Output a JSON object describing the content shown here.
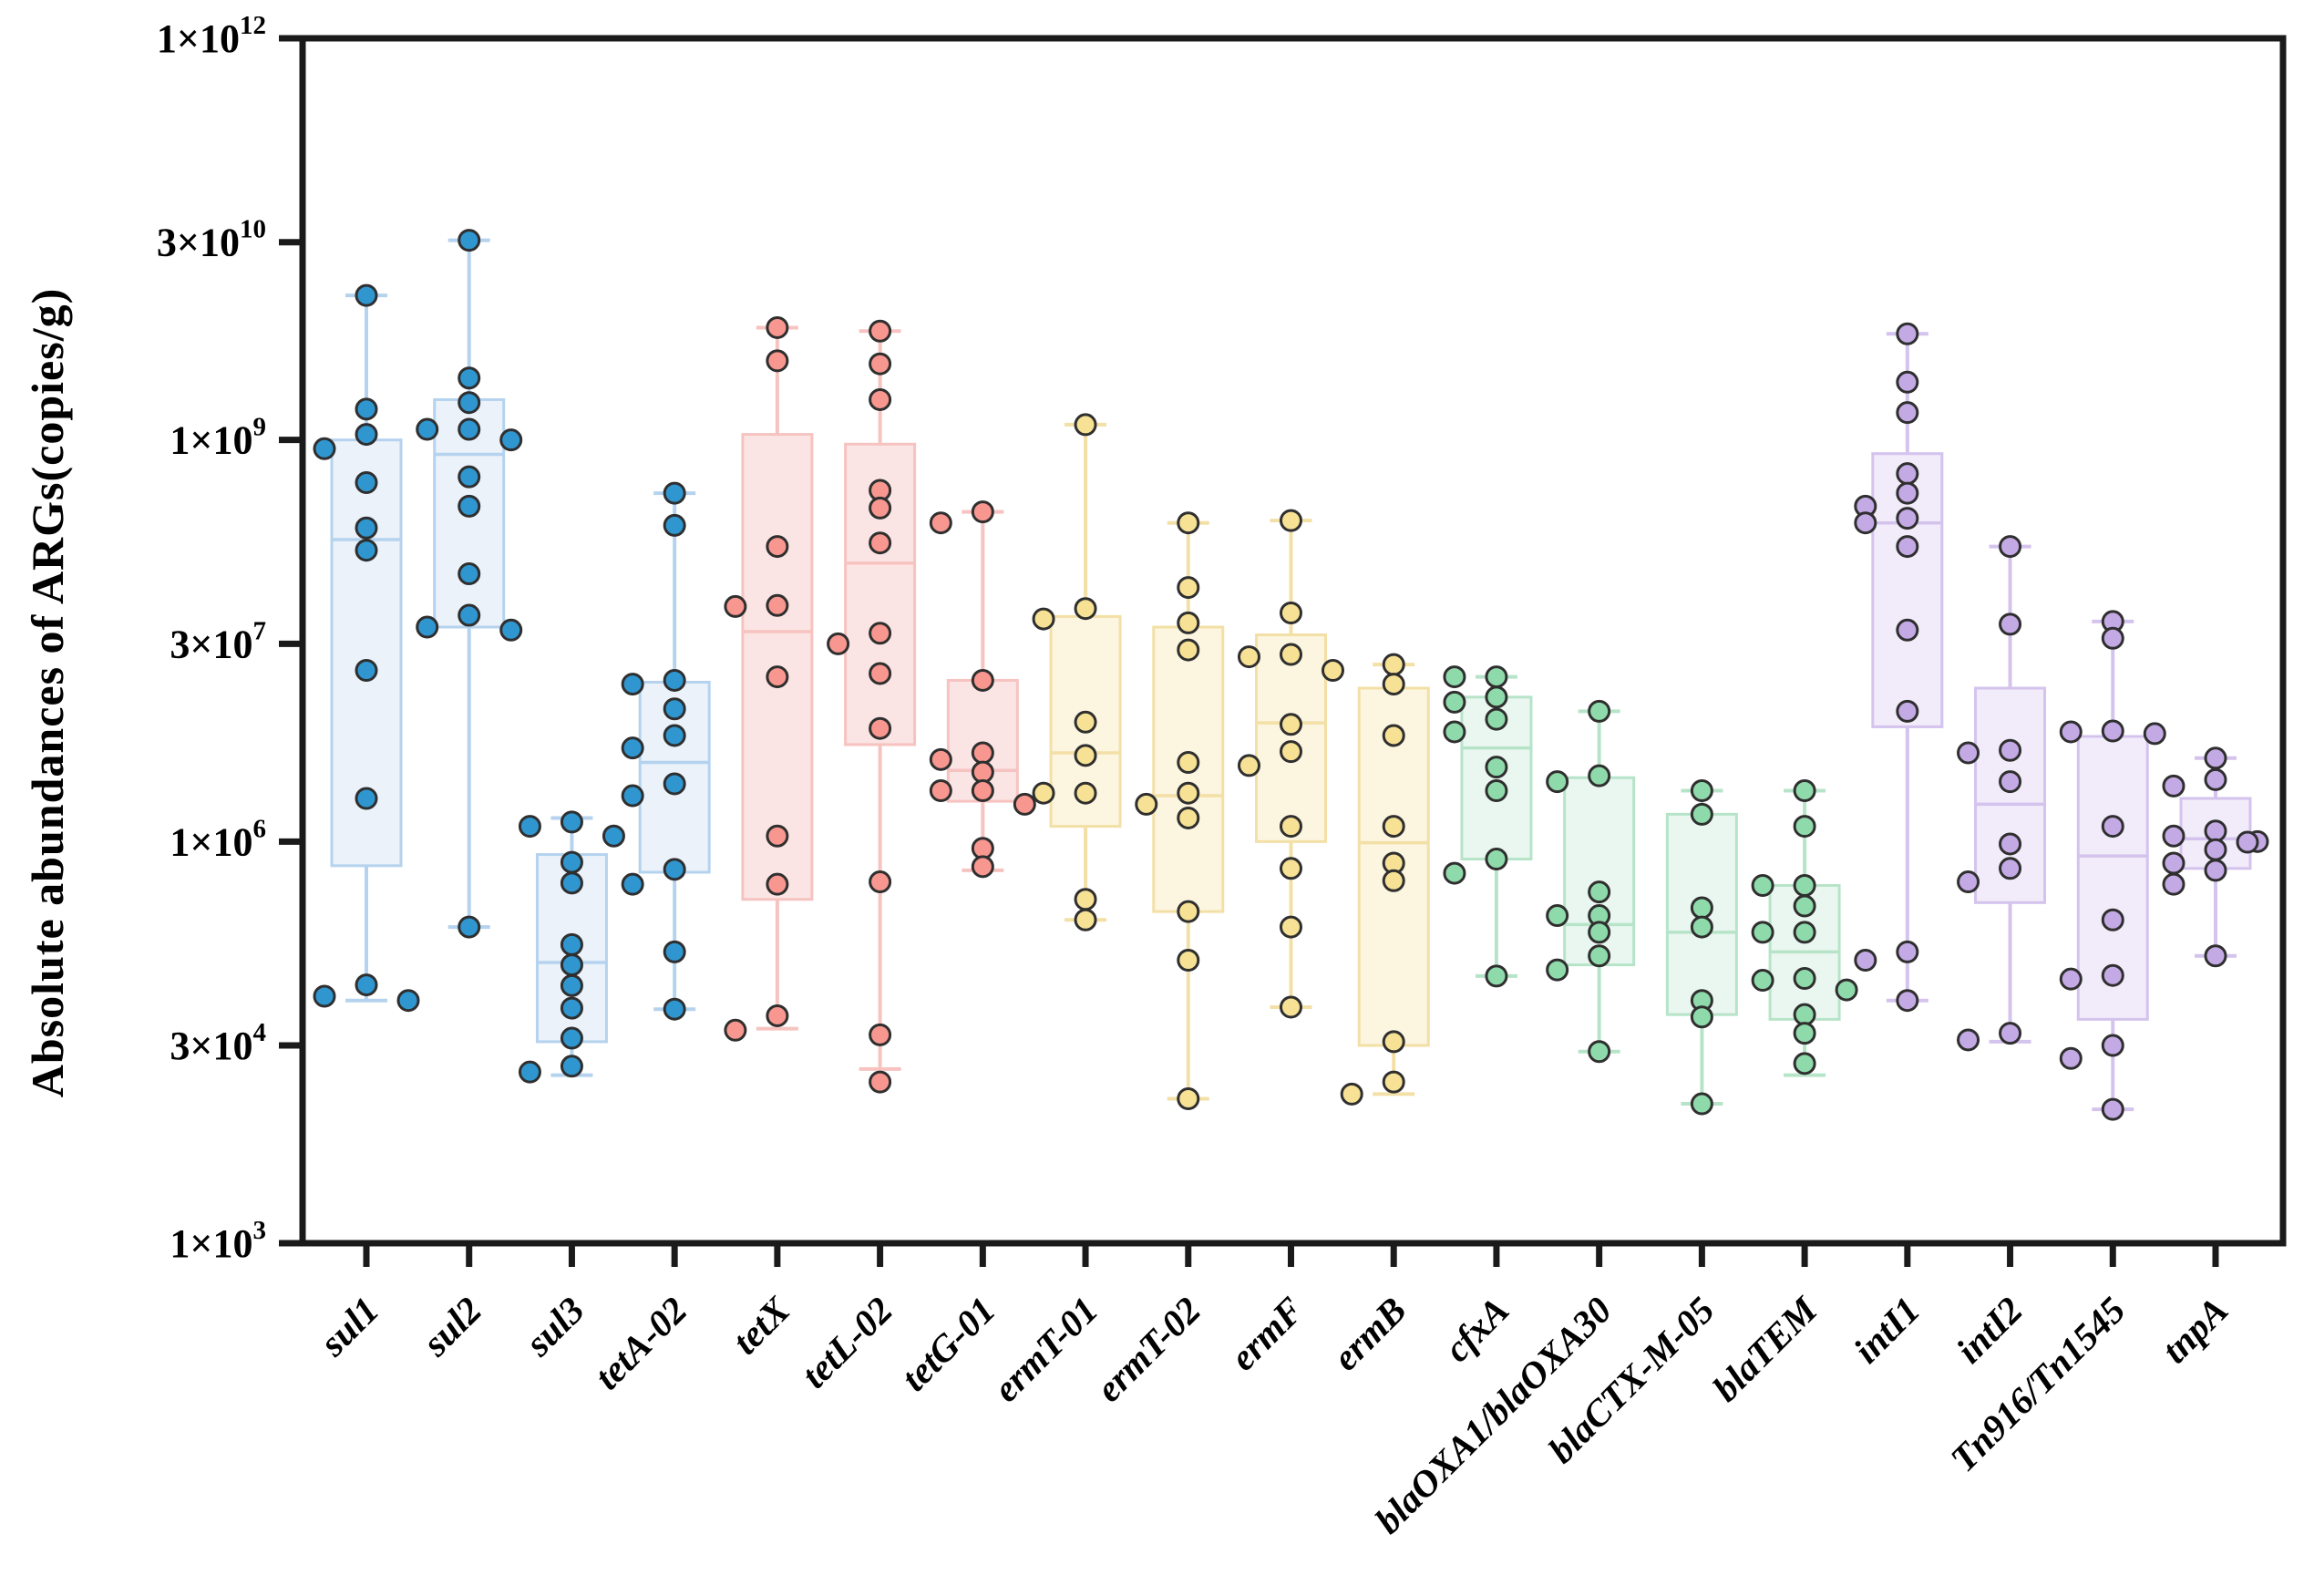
{
  "figure": {
    "background": "#ffffff",
    "frame_color": "#1a1a1a",
    "point_stroke_color": "#2f2f2f"
  },
  "chart_data": {
    "type": "box",
    "title": "",
    "xlabel": "",
    "ylabel": "Absolute abundances of ARGs(copies/g)",
    "y_scale": "log10",
    "ylim_log": [
      3,
      12
    ],
    "grid": false,
    "legend": false,
    "y_ticks": [
      {
        "coef": "1",
        "exp": "12",
        "value": 1000000000000.0
      },
      {
        "coef": "3",
        "exp": "10",
        "value": 30000000000.0
      },
      {
        "coef": "1",
        "exp": "9",
        "value": 1000000000.0
      },
      {
        "coef": "3",
        "exp": "7",
        "value": 30000000.0
      },
      {
        "coef": "1",
        "exp": "6",
        "value": 1000000.0
      },
      {
        "coef": "3",
        "exp": "4",
        "value": 30000.0
      },
      {
        "coef": "1",
        "exp": "3",
        "value": 1000.0
      }
    ],
    "palette": {
      "blue": {
        "point": "#2F96D0",
        "box_fill": "#E9F1FA",
        "box_line": "#B5D3EE"
      },
      "red": {
        "point": "#F7978F",
        "box_fill": "#FBE2E1",
        "box_line": "#F6C3C0"
      },
      "yellow": {
        "point": "#F6E195",
        "box_fill": "#FCF4DD",
        "box_line": "#F3E0A6"
      },
      "green": {
        "point": "#8FDAAB",
        "box_fill": "#E8F6EE",
        "box_line": "#B7E4C9"
      },
      "purple": {
        "point": "#C4AAE5",
        "box_fill": "#EFE9F9",
        "box_line": "#D4C3ED"
      }
    },
    "categories": [
      {
        "label": "sul1",
        "group": "blue",
        "box": {
          "q1": 660000.0,
          "median": 180000000.0,
          "q3": 1000000000.0,
          "whisker_low": 65000.0,
          "whisker_high": 12000000000.0
        },
        "points": [
          12000000000.0,
          1700000000.0,
          1100000000.0,
          860000000.0,
          480000000.0,
          220000000.0,
          150000000.0,
          19000000.0,
          2100000.0,
          85000.0,
          70000.0,
          65000.0
        ]
      },
      {
        "label": "sul2",
        "group": "blue",
        "box": {
          "q1": 40000000.0,
          "median": 780000000.0,
          "q3": 2000000000.0,
          "whisker_low": 230000.0,
          "whisker_high": 31000000000.0
        },
        "points": [
          31000000000.0,
          2900000000.0,
          1900000000.0,
          1200000000.0,
          1200000000.0,
          1000000000.0,
          530000000.0,
          320000000.0,
          100000000.0,
          49000000.0,
          40000000.0,
          38000000.0,
          230000.0
        ]
      },
      {
        "label": "sul3",
        "group": "blue",
        "box": {
          "q1": 32000.0,
          "median": 125000.0,
          "q3": 800000.0,
          "whisker_low": 18000.0,
          "whisker_high": 1500000.0
        },
        "points": [
          1400000.0,
          1300000.0,
          1100000.0,
          700000.0,
          490000.0,
          170000.0,
          120000.0,
          84000.0,
          57000.0,
          34000.0,
          21000.0,
          19000.0
        ]
      },
      {
        "label": "tetA-02",
        "group": "blue",
        "box": {
          "q1": 590000.0,
          "median": 3900000.0,
          "q3": 15500000.0,
          "whisker_low": 56000.0,
          "whisker_high": 400000000.0
        },
        "points": [
          400000000.0,
          230000000.0,
          16000000.0,
          15000000.0,
          9800000.0,
          6200000.0,
          5000000.0,
          2700000.0,
          2200000.0,
          620000.0,
          480000.0,
          150000.0,
          56000.0
        ]
      },
      {
        "label": "tetX",
        "group": "red",
        "box": {
          "q1": 370000.0,
          "median": 37000000.0,
          "q3": 1100000000.0,
          "whisker_low": 40000.0,
          "whisker_high": 6900000000.0
        },
        "points": [
          6900000000.0,
          3900000000.0,
          160000000.0,
          58000000.0,
          57000000.0,
          17000000.0,
          1100000.0,
          480000.0,
          50000.0,
          39000.0
        ]
      },
      {
        "label": "tetL-02",
        "group": "red",
        "box": {
          "q1": 5300000.0,
          "median": 120000000.0,
          "q3": 930000000.0,
          "whisker_low": 20000.0,
          "whisker_high": 6500000000.0
        },
        "points": [
          6500000000.0,
          3700000000.0,
          2000000000.0,
          420000000.0,
          310000000.0,
          170000000.0,
          36000000.0,
          30000000.0,
          18000000.0,
          7000000.0,
          500000.0,
          36000.0,
          16000.0
        ]
      },
      {
        "label": "tetG-01",
        "group": "red",
        "box": {
          "q1": 2000000.0,
          "median": 3400000.0,
          "q3": 16000000.0,
          "whisker_low": 610000.0,
          "whisker_high": 290000000.0
        },
        "points": [
          290000000.0,
          240000000.0,
          16000000.0,
          4600000.0,
          4100000.0,
          3300000.0,
          2400000.0,
          2400000.0,
          1900000.0,
          890000.0,
          650000.0
        ]
      },
      {
        "label": "ermT-01",
        "group": "yellow",
        "box": {
          "q1": 1300000.0,
          "median": 4600000.0,
          "q3": 48000000.0,
          "whisker_low": 260000.0,
          "whisker_high": 1300000000.0
        },
        "points": [
          1300000000.0,
          55000000.0,
          46000000.0,
          7800000.0,
          4400000.0,
          2300000.0,
          2300000.0,
          370000.0,
          260000.0
        ]
      },
      {
        "label": "ermT-02",
        "group": "yellow",
        "box": {
          "q1": 300000.0,
          "median": 2200000.0,
          "q3": 40000000.0,
          "whisker_low": 12000.0,
          "whisker_high": 240000000.0
        },
        "points": [
          240000000.0,
          79000000.0,
          43000000.0,
          27000000.0,
          3900000.0,
          2300000.0,
          1900000.0,
          1500000.0,
          300000.0,
          130000.0,
          12000.0
        ]
      },
      {
        "label": "ermF",
        "group": "yellow",
        "box": {
          "q1": 1000000.0,
          "median": 7700000.0,
          "q3": 35000000.0,
          "whisker_low": 58000.0,
          "whisker_high": 250000000.0
        },
        "points": [
          250000000.0,
          51000000.0,
          25000000.0,
          24000000.0,
          19000000.0,
          7500000.0,
          4700000.0,
          3700000.0,
          1300000.0,
          630000.0,
          230000.0,
          58000.0
        ]
      },
      {
        "label": "ermB",
        "group": "yellow",
        "box": {
          "q1": 30000.0,
          "median": 980000.0,
          "q3": 14000000.0,
          "whisker_low": 13000.0,
          "whisker_high": 21000000.0
        },
        "points": [
          21000000.0,
          15000000.0,
          6200000.0,
          1300000.0,
          690000.0,
          510000.0,
          32000.0,
          16000.0,
          13000.0
        ]
      },
      {
        "label": "cfxA",
        "group": "green",
        "box": {
          "q1": 740000.0,
          "median": 5000000.0,
          "q3": 12000000.0,
          "whisker_low": 99000.0,
          "whisker_high": 17000000.0
        },
        "points": [
          17000000.0,
          17000000.0,
          12000000.0,
          11000000.0,
          8200000.0,
          6600000.0,
          3600000.0,
          2400000.0,
          740000.0,
          580000.0,
          99000.0
        ]
      },
      {
        "label": "blaOXA1/blaOXA30",
        "group": "green",
        "box": {
          "q1": 120000.0,
          "median": 240000.0,
          "q3": 3000000.0,
          "whisker_low": 27000.0,
          "whisker_high": 9400000.0
        },
        "points": [
          9400000.0,
          3100000.0,
          2800000.0,
          420000.0,
          280000.0,
          280000.0,
          210000.0,
          140000.0,
          110000.0,
          27000.0
        ]
      },
      {
        "label": "blaCTX-M-05",
        "group": "green",
        "box": {
          "q1": 51000.0,
          "median": 210000.0,
          "q3": 1600000.0,
          "whisker_low": 11000.0,
          "whisker_high": 2400000.0
        },
        "points": [
          2400000.0,
          1600000.0,
          320000.0,
          230000.0,
          65000.0,
          49000.0,
          11000.0
        ]
      },
      {
        "label": "blaTEM",
        "group": "green",
        "box": {
          "q1": 47000.0,
          "median": 150000.0,
          "q3": 470000.0,
          "whisker_low": 18000.0,
          "whisker_high": 2400000.0
        },
        "points": [
          2400000.0,
          1300000.0,
          470000.0,
          470000.0,
          330000.0,
          210000.0,
          210000.0,
          95000.0,
          92000.0,
          78000.0,
          51000.0,
          37000.0,
          22000.0
        ]
      },
      {
        "label": "intI1",
        "group": "purple",
        "box": {
          "q1": 7200000.0,
          "median": 240000000.0,
          "q3": 790000000.0,
          "whisker_low": 65000.0,
          "whisker_high": 6200000000.0
        },
        "points": [
          6200000000.0,
          2700000000.0,
          1600000000.0,
          560000000.0,
          400000000.0,
          320000000.0,
          260000000.0,
          240000000.0,
          160000000.0,
          38000000.0,
          9400000.0,
          150000.0,
          130000.0,
          65000.0
        ]
      },
      {
        "label": "intI2",
        "group": "purple",
        "box": {
          "q1": 350000.0,
          "median": 1900000.0,
          "q3": 14000000.0,
          "whisker_low": 32000.0,
          "whisker_high": 160000000.0
        },
        "points": [
          160000000.0,
          42000000.0,
          4800000.0,
          4600000.0,
          2800000.0,
          960000.0,
          630000.0,
          500000.0,
          37000.0,
          33000.0
        ]
      },
      {
        "label": "Tn916/Tn1545",
        "group": "purple",
        "box": {
          "q1": 47000.0,
          "median": 780000.0,
          "q3": 6100000.0,
          "whisker_low": 10000.0,
          "whisker_high": 44000000.0
        },
        "points": [
          44000000.0,
          33000000.0,
          6700000.0,
          6600000.0,
          6400000.0,
          1300000.0,
          260000.0,
          100000.0,
          94000.0,
          30000.0,
          24000.0,
          10000.0
        ]
      },
      {
        "label": "tnpA",
        "group": "purple",
        "box": {
          "q1": 630000.0,
          "median": 1050000.0,
          "q3": 2100000.0,
          "whisker_low": 140000.0,
          "whisker_high": 4200000.0
        },
        "points": [
          4200000.0,
          2900000.0,
          2600000.0,
          1200000.0,
          1100000.0,
          1000000.0,
          990000.0,
          870000.0,
          690000.0,
          610000.0,
          480000.0,
          140000.0
        ]
      }
    ]
  }
}
